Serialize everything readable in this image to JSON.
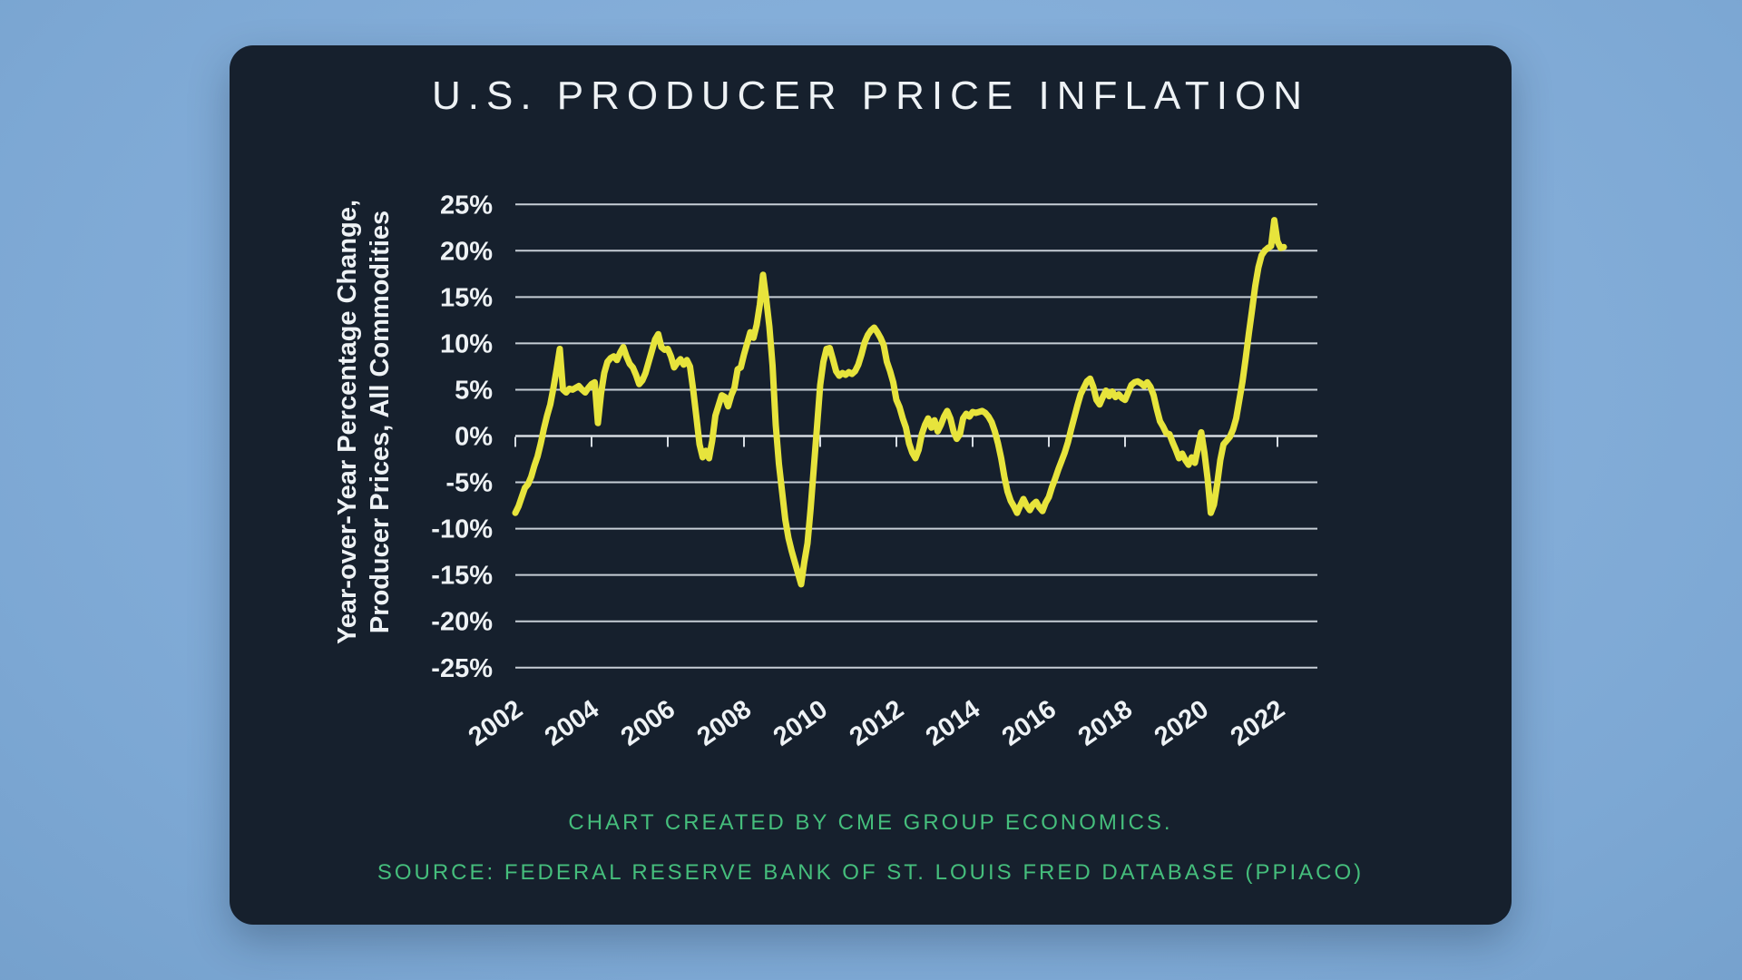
{
  "title": "U.S. PRODUCER PRICE INFLATION",
  "footer": {
    "line1": "CHART CREATED BY CME GROUP ECONOMICS.",
    "line2": "SOURCE: FEDERAL RESERVE BANK OF ST. LOUIS FRED DATABASE (PPIACO)"
  },
  "colors": {
    "background_outer": "#7da8d4",
    "card_background": "#16202d",
    "title_text": "#eef2f5",
    "axis_label_text": "#eef2f5",
    "gridline": "#c7ced6",
    "zero_axis": "#d6dce2",
    "data_line": "#e7e43c",
    "footer_text": "#45be7c"
  },
  "chart_data": {
    "type": "line",
    "title": "U.S. PRODUCER PRICE INFLATION",
    "ylabel_lines": [
      "Year-over-Year Percentage Change,",
      "Producer Prices, All Commodities"
    ],
    "xlabel": "",
    "x_tick_years": [
      2002,
      2004,
      2006,
      2008,
      2010,
      2012,
      2014,
      2016,
      2018,
      2020,
      2022
    ],
    "y_tick_values": [
      25,
      20,
      15,
      10,
      5,
      0,
      -5,
      -10,
      -15,
      -20,
      -25
    ],
    "y_tick_labels": [
      "25%",
      "20%",
      "15%",
      "10%",
      "5%",
      "0%",
      "-5%",
      "-10%",
      "-15%",
      "-20%",
      "-25%"
    ],
    "ylim": [
      -25,
      25
    ],
    "x_start": 2002.0,
    "x_end": 2023.0,
    "grid": true,
    "legend_position": "none",
    "series": [
      {
        "name": "U.S. Producer Price Index, All Commodities, YoY % change",
        "frequency": "monthly",
        "start_year": 2002,
        "start_month": 1,
        "values": [
          -8.3,
          -7.6,
          -6.6,
          -5.6,
          -5.2,
          -4.4,
          -3.2,
          -2.2,
          -0.8,
          0.8,
          2.2,
          3.4,
          5.2,
          7.2,
          9.4,
          5.0,
          4.7,
          5.1,
          5.0,
          5.2,
          5.4,
          5.0,
          4.7,
          5.2,
          5.6,
          5.8,
          1.4,
          4.6,
          6.8,
          8.0,
          8.4,
          8.6,
          8.2,
          9.0,
          9.6,
          8.6,
          7.8,
          7.4,
          6.6,
          5.6,
          6.0,
          6.8,
          8.0,
          9.2,
          10.4,
          11.0,
          9.6,
          9.3,
          9.4,
          8.6,
          7.4,
          7.9,
          8.3,
          7.7,
          8.2,
          7.5,
          5.0,
          2.1,
          -0.9,
          -2.3,
          -1.6,
          -2.4,
          -0.5,
          2.2,
          3.3,
          4.4,
          4.2,
          3.2,
          4.4,
          5.2,
          7.2,
          7.4,
          8.8,
          10.0,
          11.2,
          10.6,
          12.0,
          14.2,
          17.4,
          14.8,
          11.8,
          7.6,
          1.2,
          -3.0,
          -6.0,
          -9.0,
          -11.0,
          -12.4,
          -13.6,
          -14.8,
          -16.0,
          -13.6,
          -11.6,
          -7.8,
          -3.4,
          1.0,
          5.5,
          8.0,
          9.4,
          9.5,
          8.3,
          7.0,
          6.5,
          6.8,
          6.6,
          6.9,
          6.7,
          7.0,
          7.7,
          8.8,
          10.1,
          10.9,
          11.4,
          11.7,
          11.2,
          10.6,
          9.8,
          8.0,
          7.0,
          5.8,
          3.9,
          3.1,
          1.9,
          0.9,
          -0.8,
          -1.8,
          -2.4,
          -1.5,
          0.2,
          1.2,
          1.9,
          0.9,
          1.7,
          0.5,
          1.2,
          2.1,
          2.7,
          1.9,
          0.5,
          -0.3,
          0.2,
          1.9,
          2.4,
          2.1,
          2.6,
          2.5,
          2.6,
          2.7,
          2.5,
          2.1,
          1.5,
          0.5,
          -0.8,
          -2.4,
          -4.4,
          -6.0,
          -7.0,
          -7.6,
          -8.3,
          -7.5,
          -6.8,
          -7.5,
          -8.0,
          -7.4,
          -7.1,
          -7.7,
          -8.1,
          -7.2,
          -6.6,
          -5.5,
          -4.6,
          -3.6,
          -2.7,
          -1.8,
          -0.7,
          0.7,
          2.0,
          3.3,
          4.5,
          5.2,
          5.9,
          6.2,
          5.3,
          3.9,
          3.4,
          4.2,
          4.9,
          4.3,
          4.8,
          4.2,
          4.5,
          4.1,
          3.9,
          4.7,
          5.5,
          5.8,
          5.9,
          5.7,
          5.4,
          5.8,
          5.3,
          4.4,
          2.9,
          1.6,
          1.0,
          0.3,
          0.2,
          -0.7,
          -1.5,
          -2.4,
          -1.9,
          -2.6,
          -3.1,
          -2.3,
          -2.9,
          -1.2,
          0.4,
          -1.8,
          -4.6,
          -8.3,
          -7.4,
          -5.2,
          -2.6,
          -0.9,
          -0.5,
          -0.1,
          0.7,
          1.9,
          3.9,
          5.9,
          8.4,
          11.1,
          13.6,
          16.2,
          18.2,
          19.5,
          20.0,
          20.3,
          20.5,
          23.3,
          21.0,
          20.3,
          20.4
        ]
      }
    ]
  }
}
